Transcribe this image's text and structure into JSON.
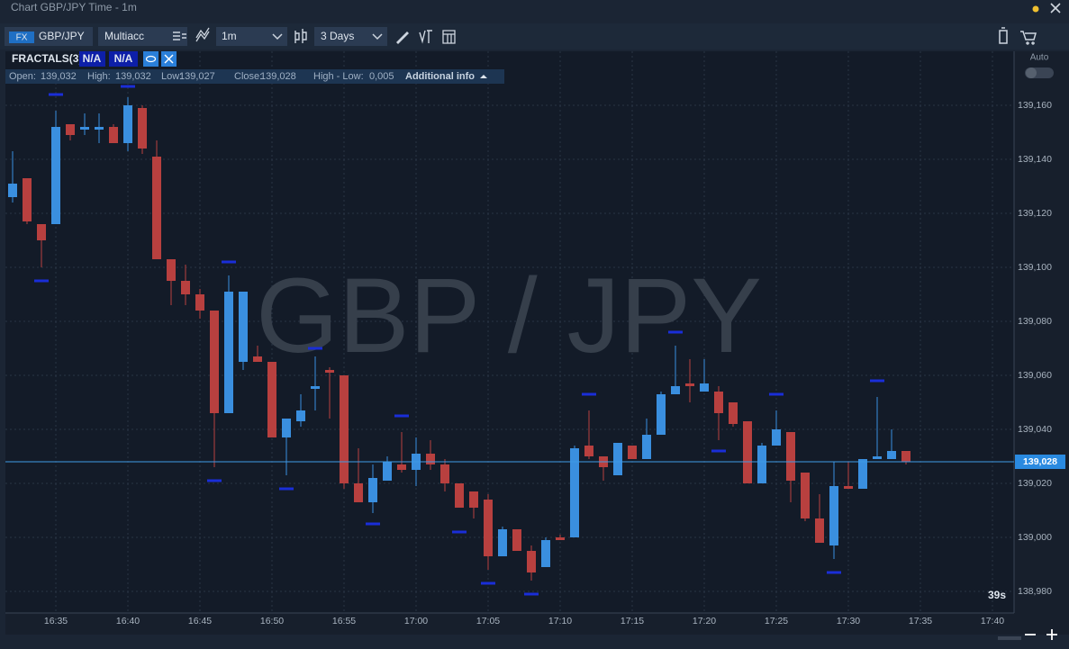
{
  "header": {
    "title": "Chart GBP/JPY Time - 1m"
  },
  "toolbar": {
    "market": "FX",
    "symbol": "GBP/JPY",
    "account": "Multiacc",
    "timeframe": "1m",
    "range": "3 Days"
  },
  "indicator": {
    "name": "FRACTALS(3)",
    "params": [
      "N/A",
      "N/A"
    ]
  },
  "info": {
    "items": [
      {
        "label": "Open:",
        "value": "139,032"
      },
      {
        "label": "High:",
        "value": "139,032"
      },
      {
        "label": "Low:",
        "value": "139,027"
      },
      {
        "label": "Close:",
        "value": "139,028"
      },
      {
        "label": "High - Low:",
        "value": "0,005"
      }
    ],
    "additional": "Additional info"
  },
  "auto": "Auto",
  "chart_data": {
    "type": "candlestick",
    "watermark": "GBP / JPY",
    "countdown": "39s",
    "up_color": "#3a8fdf",
    "down_color": "#b8403f",
    "open": [
      139.126,
      139.133,
      139.116,
      139.116,
      139.153,
      139.151,
      139.151,
      139.152,
      139.146,
      139.159,
      139.141,
      139.103,
      139.095,
      139.09,
      139.084,
      139.046,
      139.065,
      139.067,
      139.065,
      139.037,
      139.043,
      139.055,
      139.062,
      139.06,
      139.02,
      139.013,
      139.021,
      139.027,
      139.025,
      139.031,
      139.027,
      139.02,
      139.017,
      139.014,
      138.993,
      139.003,
      138.995,
      138.989,
      139.0,
      139.0,
      139.034,
      139.03,
      139.023,
      139.034,
      139.029,
      139.038,
      139.053,
      139.057,
      139.054,
      139.054,
      139.05,
      139.043,
      139.02,
      139.034,
      139.039,
      139.024,
      139.007,
      138.997,
      139.019,
      139.018,
      139.029,
      139.029,
      139.032
    ],
    "high": [
      139.143,
      139.133,
      139.116,
      139.158,
      139.153,
      139.157,
      139.157,
      139.153,
      139.163,
      139.16,
      139.147,
      139.103,
      139.101,
      139.092,
      139.084,
      139.097,
      139.091,
      139.071,
      139.065,
      139.044,
      139.053,
      139.067,
      139.063,
      139.06,
      139.033,
      139.027,
      139.03,
      139.039,
      139.037,
      139.036,
      139.029,
      139.02,
      139.017,
      139.016,
      139.004,
      139.003,
      138.997,
      139.0,
      139.001,
      139.034,
      139.047,
      139.03,
      139.035,
      139.034,
      139.044,
      139.054,
      139.071,
      139.066,
      139.066,
      139.056,
      139.05,
      139.043,
      139.035,
      139.047,
      139.039,
      139.024,
      139.016,
      139.028,
      139.028,
      139.029,
      139.052,
      139.04,
      139.032
    ],
    "low": [
      139.124,
      139.116,
      139.1,
      139.116,
      139.147,
      139.149,
      139.146,
      139.146,
      139.143,
      139.142,
      139.103,
      139.086,
      139.086,
      139.081,
      139.026,
      139.046,
      139.062,
      139.065,
      139.037,
      139.023,
      139.041,
      139.047,
      139.044,
      139.018,
      139.013,
      139.009,
      139.021,
      139.024,
      139.019,
      139.025,
      139.017,
      139.011,
      139.007,
      138.988,
      138.993,
      138.995,
      138.984,
      138.989,
      138.999,
      139.0,
      139.029,
      139.021,
      139.023,
      139.029,
      139.029,
      139.038,
      139.053,
      139.05,
      139.054,
      139.036,
      139.041,
      139.02,
      139.02,
      139.034,
      139.013,
      139.006,
      138.998,
      138.992,
      139.018,
      139.018,
      139.029,
      139.029,
      139.027
    ],
    "close": [
      139.131,
      139.117,
      139.11,
      139.152,
      139.149,
      139.152,
      139.152,
      139.146,
      139.16,
      139.144,
      139.103,
      139.095,
      139.09,
      139.084,
      139.046,
      139.091,
      139.091,
      139.065,
      139.037,
      139.044,
      139.047,
      139.056,
      139.061,
      139.02,
      139.013,
      139.022,
      139.028,
      139.025,
      139.031,
      139.027,
      139.02,
      139.011,
      139.011,
      138.993,
      139.003,
      138.995,
      138.987,
      138.999,
      138.999,
      139.033,
      139.03,
      139.026,
      139.035,
      139.029,
      139.038,
      139.053,
      139.056,
      139.056,
      139.057,
      139.046,
      139.042,
      139.02,
      139.034,
      139.04,
      139.021,
      139.007,
      138.998,
      139.019,
      139.018,
      139.029,
      139.03,
      139.032,
      139.028
    ],
    "fractals": {
      "color": "#1a2ed8",
      "index": [
        2,
        3,
        8,
        14,
        15,
        19,
        21,
        25,
        27,
        31,
        33,
        36,
        40,
        46,
        49,
        53,
        57,
        60
      ],
      "values": [
        139.095,
        139.164,
        139.167,
        139.021,
        139.102,
        139.018,
        139.07,
        139.005,
        139.045,
        139.002,
        138.983,
        138.979,
        139.053,
        139.076,
        139.032,
        139.053,
        138.987,
        139.058
      ]
    },
    "last_price": {
      "value": 139.028,
      "label": "139,028"
    },
    "xlim": [
      -0.5,
      69.5
    ],
    "xticks": [
      {
        "value": 3,
        "label": "16:35"
      },
      {
        "value": 8,
        "label": "16:40"
      },
      {
        "value": 13,
        "label": "16:45"
      },
      {
        "value": 18,
        "label": "16:50"
      },
      {
        "value": 23,
        "label": "16:55"
      },
      {
        "value": 28,
        "label": "17:00"
      },
      {
        "value": 33,
        "label": "17:05"
      },
      {
        "value": 38,
        "label": "17:10"
      },
      {
        "value": 43,
        "label": "17:15"
      },
      {
        "value": 48,
        "label": "17:20"
      },
      {
        "value": 53,
        "label": "17:25"
      },
      {
        "value": 58,
        "label": "17:30"
      },
      {
        "value": 63,
        "label": "17:35"
      },
      {
        "value": 68,
        "label": "17:40"
      }
    ],
    "ylim": [
      138.972,
      139.18
    ],
    "yticks": [
      {
        "value": 138.98,
        "label": "138,980"
      },
      {
        "value": 139.0,
        "label": "139,000"
      },
      {
        "value": 139.02,
        "label": "139,020"
      },
      {
        "value": 139.04,
        "label": "139,040"
      },
      {
        "value": 139.06,
        "label": "139,060"
      },
      {
        "value": 139.08,
        "label": "139,080"
      },
      {
        "value": 139.1,
        "label": "139,100"
      },
      {
        "value": 139.12,
        "label": "139,120"
      },
      {
        "value": 139.14,
        "label": "139,140"
      },
      {
        "value": 139.16,
        "label": "139,160"
      }
    ],
    "grid": true
  }
}
